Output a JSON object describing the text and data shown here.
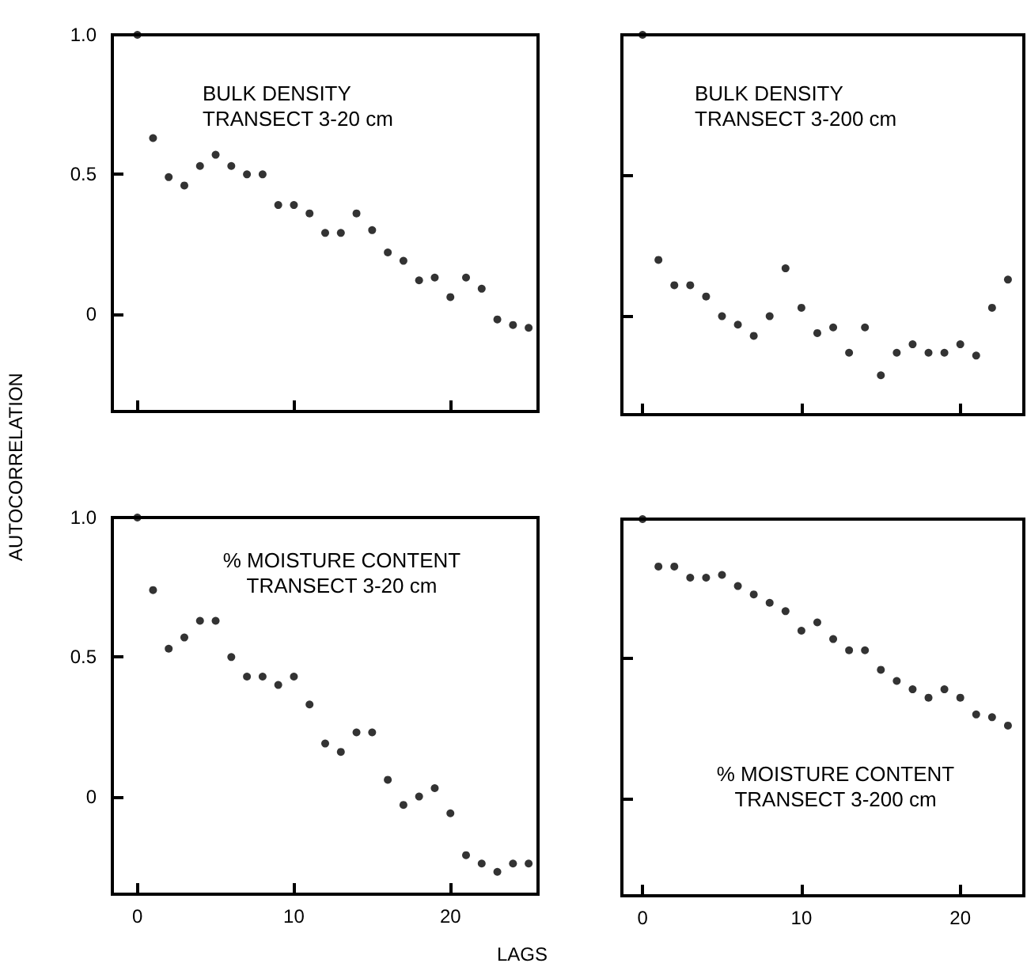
{
  "chart_data": [
    {
      "type": "scatter",
      "title": "BULK DENSITY\nTRANSECT 3-20 cm",
      "x": [
        0,
        1,
        2,
        3,
        4,
        5,
        6,
        7,
        8,
        9,
        10,
        11,
        12,
        13,
        14,
        15,
        16,
        17,
        18,
        19,
        20,
        21,
        22,
        23,
        24,
        25
      ],
      "values": [
        1.0,
        0.63,
        0.49,
        0.46,
        0.53,
        0.57,
        0.53,
        0.5,
        0.5,
        0.39,
        0.39,
        0.36,
        0.29,
        0.29,
        0.36,
        0.3,
        0.22,
        0.19,
        0.12,
        0.13,
        0.06,
        0.13,
        0.09,
        -0.02,
        -0.04,
        -0.05
      ],
      "color": "#000000",
      "marker": "circle",
      "grid": false,
      "xlim": [
        -1.6,
        25.6
      ],
      "ylim": [
        -0.35,
        1.0
      ],
      "xticks": [
        0,
        10,
        20
      ],
      "yticks": [
        0,
        0.5,
        {
          "value": 1,
          "label": "1.0"
        }
      ],
      "tick_labels": "y"
    },
    {
      "type": "scatter",
      "title": "BULK DENSITY\nTRANSECT 3-200 cm",
      "x": [
        0,
        1,
        2,
        3,
        4,
        5,
        6,
        7,
        8,
        9,
        10,
        11,
        12,
        13,
        14,
        15,
        16,
        17,
        18,
        19,
        20,
        21,
        22,
        23
      ],
      "values": [
        1.0,
        0.2,
        0.11,
        0.11,
        0.07,
        0.0,
        -0.03,
        -0.07,
        0.0,
        0.17,
        0.03,
        -0.06,
        -0.04,
        -0.13,
        -0.04,
        -0.21,
        -0.13,
        -0.1,
        -0.13,
        -0.13,
        -0.1,
        -0.14,
        0.03,
        0.13
      ],
      "color": "#000000",
      "marker": "circle",
      "grid": false,
      "xlim": [
        -1.3,
        24
      ],
      "ylim": [
        -0.35,
        1.0
      ],
      "xticks": [
        0,
        10,
        20
      ],
      "yticks": [
        0,
        0.5,
        1
      ],
      "tick_labels": false
    },
    {
      "type": "scatter",
      "title": "% MOISTURE CONTENT\nTRANSECT 3-20 cm",
      "xlabel": "LAGS",
      "ylabel": "AUTOCORRELATION",
      "x": [
        0,
        1,
        2,
        3,
        4,
        5,
        6,
        7,
        8,
        9,
        10,
        11,
        12,
        13,
        14,
        15,
        16,
        17,
        18,
        19,
        20,
        21,
        22,
        23,
        24,
        25
      ],
      "values": [
        1.0,
        0.74,
        0.53,
        0.57,
        0.63,
        0.63,
        0.5,
        0.43,
        0.43,
        0.4,
        0.43,
        0.33,
        0.19,
        0.16,
        0.23,
        0.23,
        0.06,
        -0.03,
        0.0,
        0.03,
        -0.06,
        -0.21,
        -0.24,
        -0.27,
        -0.24,
        -0.24
      ],
      "color": "#000000",
      "marker": "circle",
      "grid": false,
      "xlim": [
        -1.6,
        25.6
      ],
      "ylim": [
        -0.35,
        1.0
      ],
      "xticks": [
        0,
        10,
        20
      ],
      "yticks": [
        0,
        0.5,
        {
          "value": 1,
          "label": "1.0"
        }
      ]
    },
    {
      "type": "scatter",
      "title": "% MOISTURE CONTENT\nTRANSECT 3-200 cm",
      "x": [
        0,
        1,
        2,
        3,
        4,
        5,
        6,
        7,
        8,
        9,
        10,
        11,
        12,
        13,
        14,
        15,
        16,
        17,
        18,
        19,
        20,
        21,
        22,
        23
      ],
      "values": [
        1.0,
        0.83,
        0.83,
        0.79,
        0.79,
        0.8,
        0.76,
        0.73,
        0.7,
        0.67,
        0.6,
        0.63,
        0.57,
        0.53,
        0.53,
        0.46,
        0.42,
        0.39,
        0.36,
        0.39,
        0.36,
        0.3,
        0.29,
        0.26
      ],
      "color": "#000000",
      "marker": "circle",
      "grid": false,
      "xlim": [
        -1.3,
        24
      ],
      "ylim": [
        -0.35,
        1.0
      ],
      "xticks": [
        0,
        10,
        20
      ],
      "yticks": [
        0,
        0.5,
        1
      ],
      "tick_labels": "x"
    }
  ]
}
